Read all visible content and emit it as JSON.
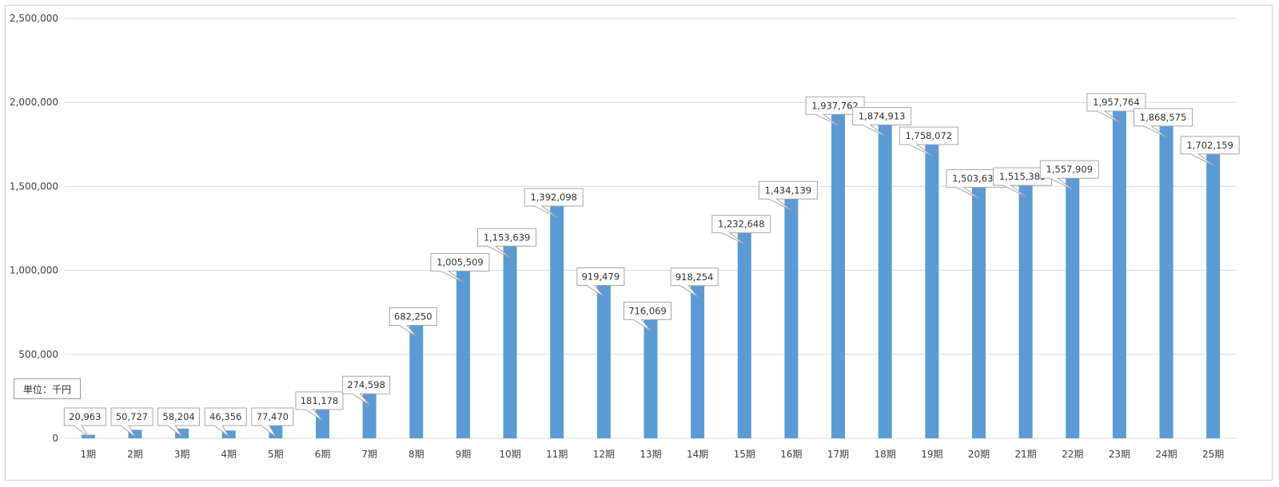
{
  "chart_data": {
    "type": "bar",
    "title": "",
    "xlabel": "",
    "ylabel": "",
    "unit_note": "単位：千円",
    "categories": [
      "1期",
      "2期",
      "3期",
      "4期",
      "5期",
      "6期",
      "7期",
      "8期",
      "9期",
      "10期",
      "11期",
      "12期",
      "13期",
      "14期",
      "15期",
      "16期",
      "17期",
      "18期",
      "19期",
      "20期",
      "21期",
      "22期",
      "23期",
      "24期",
      "25期"
    ],
    "values": [
      20963,
      50727,
      58204,
      46356,
      77470,
      181178,
      274598,
      682250,
      1005509,
      1153639,
      1392098,
      919479,
      716069,
      918254,
      1232648,
      1434139,
      1937762,
      1874913,
      1758072,
      1503634,
      1515383,
      1557909,
      1957764,
      1868575,
      1702159
    ],
    "data_labels": [
      "20,963",
      "50,727",
      "58,204",
      "46,356",
      "77,470",
      "181,178",
      "274,598",
      "682,250",
      "1,005,509",
      "1,153,639",
      "1,392,098",
      "919,479",
      "716,069",
      "918,254",
      "1,232,648",
      "1,434,139",
      "1,937,762",
      "1,874,913",
      "1,758,072",
      "1,503,634",
      "1,515,383",
      "1,557,909",
      "1,957,764",
      "1,868,575",
      "1,702,159"
    ],
    "ylim": [
      0,
      2500000
    ],
    "y_ticks": [
      0,
      500000,
      1000000,
      1500000,
      2000000,
      2500000
    ],
    "y_tick_labels": [
      "0",
      "500,000",
      "1,000,000",
      "1,500,000",
      "2,000,000",
      "2,500,000"
    ],
    "grid": true,
    "legend": "none",
    "bar_color": "#5b9bd5",
    "gridline_color": "#d9d9d9"
  }
}
